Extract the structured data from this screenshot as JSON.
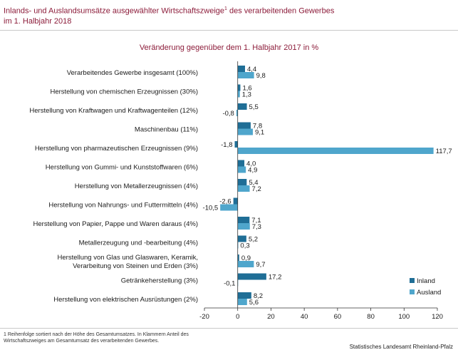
{
  "header": {
    "title_line1": "Inlands- und Auslandsumsätze ausgewählter Wirtschaftszweige",
    "title_sup": "1",
    "title_line1_end": " des verarbeitenden Gewerbes",
    "title_line2": "im 1. Halbjahr 2018"
  },
  "chart_data": {
    "type": "bar",
    "orientation": "horizontal",
    "title": "Veränderung gegenüber dem 1. Halbjahr 2017 in %",
    "categories": [
      "Verarbeitendes Gewerbe insgesamt (100%)",
      "Herstellung von chemischen Erzeugnissen (30%)",
      "Herstellung von Kraftwagen und Kraftwagenteilen (12%)",
      "Maschinenbau (11%)",
      "Herstellung von pharmazeutischen Erzeugnissen (9%)",
      "Herstellung von Gummi- und Kunststoffwaren (6%)",
      "Herstellung von Metallerzeugnissen (4%)",
      "Herstellung von Nahrungs- und Futtermitteln (4%)",
      "Herstellung von Papier, Pappe und Waren daraus (4%)",
      "Metallerzeugung und -bearbeitung (4%)",
      "Herstellung von Glas und Glaswaren, Keramik,\nVerarbeitung von Steinen und Erden (3%)",
      "Getränkeherstellung (3%)",
      "Herstellung von elektrischen Ausrüstungen (2%)"
    ],
    "series": [
      {
        "name": "Inland",
        "color": "#1f6e96",
        "values": [
          4.4,
          1.6,
          5.5,
          7.8,
          -1.8,
          4.0,
          5.4,
          -2.6,
          7.1,
          5.2,
          0.9,
          17.2,
          8.2
        ],
        "labels": [
          "4,4",
          "1,6",
          "5,5",
          "7,8",
          "-1,8",
          "4,0",
          "5,4",
          "-2,6",
          "7,1",
          "5,2",
          "0,9",
          "17,2",
          "8,2"
        ]
      },
      {
        "name": "Ausland",
        "color": "#4fa6cc",
        "values": [
          9.8,
          1.3,
          -0.8,
          9.1,
          117.7,
          4.9,
          7.2,
          -10.5,
          7.3,
          0.3,
          9.7,
          -0.1,
          5.6
        ],
        "labels": [
          "9,8",
          "1,3",
          "-0,8",
          "9,1",
          "117,7",
          "4,9",
          "7,2",
          "-10,5",
          "7,3",
          "0,3",
          "9,7",
          "-0,1",
          "5,6"
        ]
      }
    ],
    "xlim": [
      -20,
      120
    ],
    "xticks": [
      -20,
      0,
      20,
      40,
      60,
      80,
      100,
      120
    ],
    "grid": false,
    "legend": "bottom-right"
  },
  "footnote": "1 Reihenfolge sortiert nach der Höhe des Gesamtumsatzes. In Klammern Anteil des Wirtschaftszweiges am Gesamtumsatz des verarbeitenden Gewerbes.",
  "source": "Statistisches Landesamt Rheinland-Pfalz"
}
